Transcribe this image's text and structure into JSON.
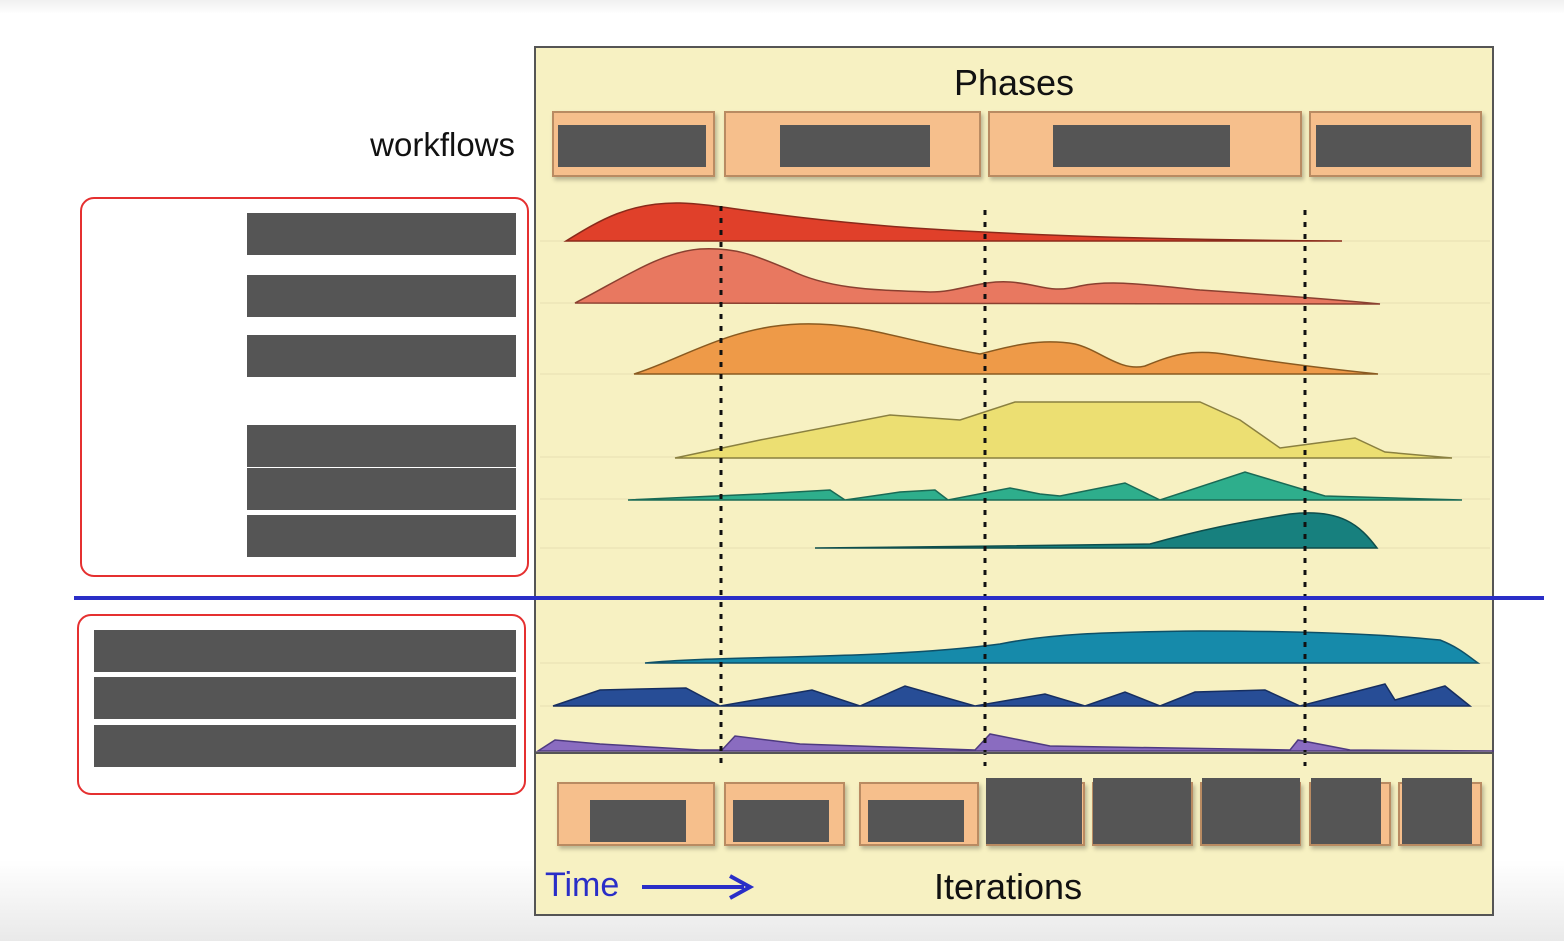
{
  "diagram": {
    "phases_label": "Phases",
    "workflows_label": "workflows",
    "iterations_label": "Iterations",
    "time_label": "Time",
    "colors": {
      "panel": "#f7f1c2",
      "phase_box": "#f6bf8c",
      "redaction": "#555555",
      "highlight_border": "#e53030",
      "divider": "#2a2ec7",
      "time_arrow": "#2a2ec7",
      "workflow_hump_colors": [
        "#e0402a",
        "#e87860",
        "#ee9a48",
        "#ecdf72",
        "#2eae8c",
        "#17807e",
        "#168aaa",
        "#274d96",
        "#8a6cc0"
      ]
    },
    "phase_count": 4,
    "iteration_count": 8,
    "core_workflow_count": 6,
    "supporting_workflow_count": 3
  }
}
